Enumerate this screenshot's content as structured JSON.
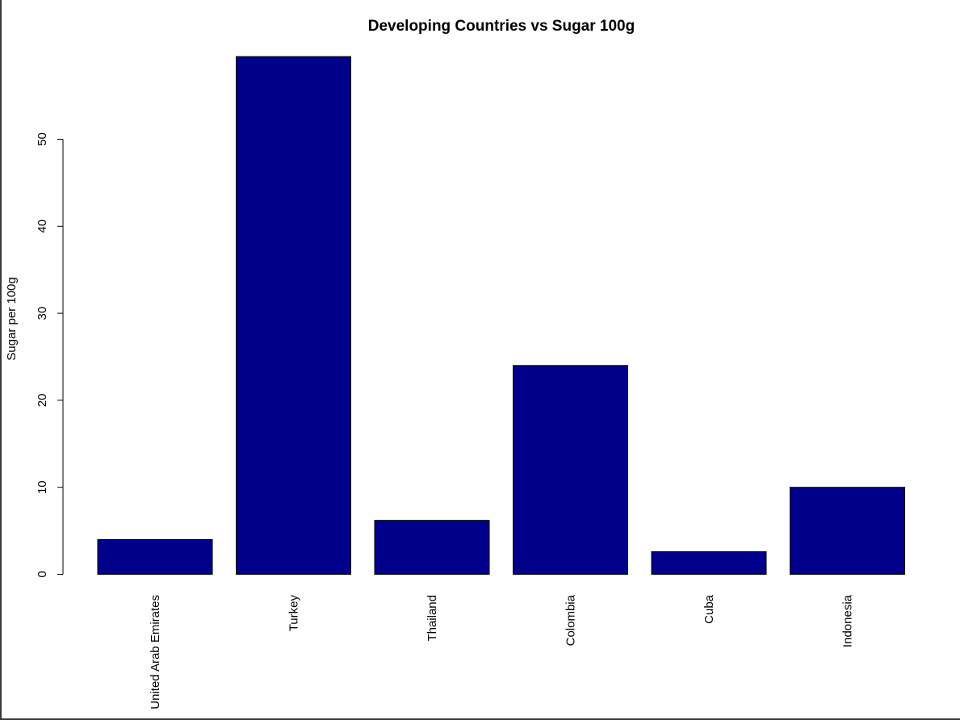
{
  "chart_data": {
    "type": "bar",
    "title": "Developing Countries vs Sugar 100g",
    "xlabel": "",
    "ylabel": "Sugar per 100g",
    "categories": [
      "United Arab Emirates",
      "Turkey",
      "Thailand",
      "Colombia",
      "Cuba",
      "Indonesia"
    ],
    "values": [
      4.0,
      59.5,
      6.2,
      24.0,
      2.6,
      10.0
    ],
    "ylim": [
      0,
      60
    ],
    "yticks": [
      "0",
      "10",
      "20",
      "30",
      "40",
      "50"
    ],
    "grid": false,
    "legend": "none",
    "colors": {
      "bar_fill": "#00008B",
      "bar_stroke": "#000000",
      "axis": "#000000",
      "background": "#FFFFFF"
    }
  }
}
